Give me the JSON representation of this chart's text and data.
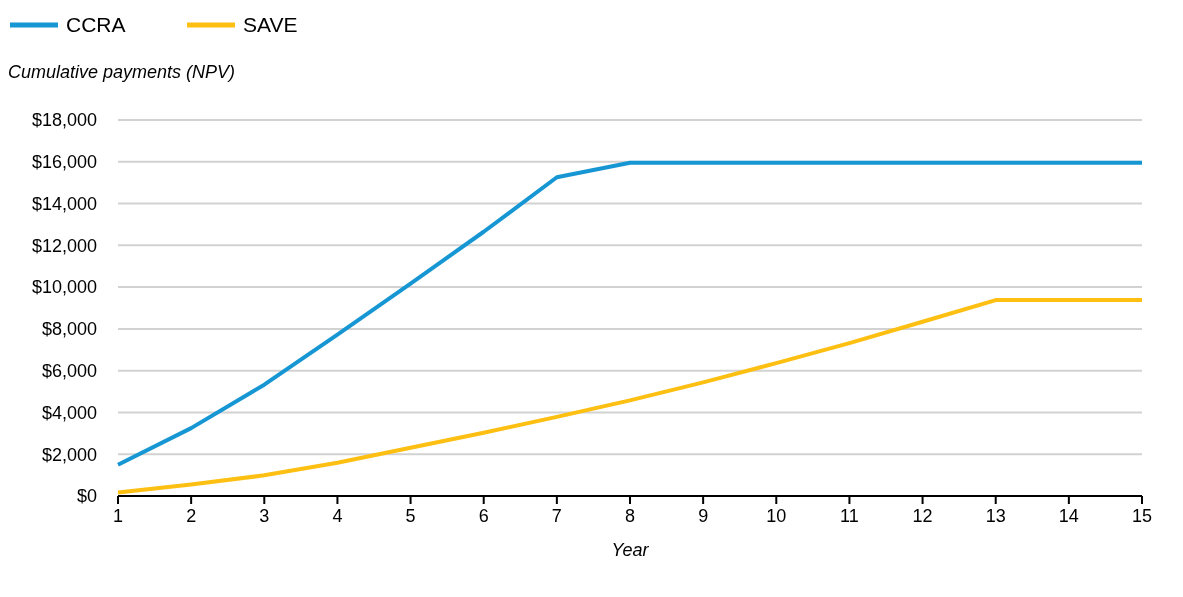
{
  "chart_data": {
    "type": "line",
    "ylabel": "Cumulative payments (NPV)",
    "xlabel": "Year",
    "x": [
      1,
      2,
      3,
      4,
      5,
      6,
      7,
      8,
      9,
      10,
      11,
      12,
      13,
      14,
      15
    ],
    "series": [
      {
        "name": "CCRA",
        "color": "#1696d2",
        "values": [
          1500,
          3250,
          5330,
          7730,
          10170,
          12650,
          15260,
          15950,
          15950,
          15950,
          15950,
          15950,
          15950,
          15950,
          15950
        ]
      },
      {
        "name": "SAVE",
        "color": "#fdbf11",
        "values": [
          170,
          550,
          990,
          1590,
          2310,
          3030,
          3790,
          4580,
          5440,
          6360,
          7320,
          8340,
          9380,
          9380,
          9380
        ]
      }
    ],
    "xlim": [
      1,
      15
    ],
    "xticks": [
      1,
      2,
      3,
      4,
      5,
      6,
      7,
      8,
      9,
      10,
      11,
      12,
      13,
      14,
      15
    ],
    "ylim": [
      0,
      18000
    ],
    "yticks": [
      {
        "value": 0,
        "label": "$0"
      },
      {
        "value": 2000,
        "label": "$2,000"
      },
      {
        "value": 4000,
        "label": "$4,000"
      },
      {
        "value": 6000,
        "label": "$6,000"
      },
      {
        "value": 8000,
        "label": "$8,000"
      },
      {
        "value": 10000,
        "label": "$10,000"
      },
      {
        "value": 12000,
        "label": "$12,000"
      },
      {
        "value": 14000,
        "label": "$14,000"
      },
      {
        "value": 16000,
        "label": "$16,000"
      },
      {
        "value": 18000,
        "label": "$18,000"
      }
    ],
    "grid": "y",
    "legend": "top left",
    "marker": "none",
    "line_style": "solid"
  }
}
